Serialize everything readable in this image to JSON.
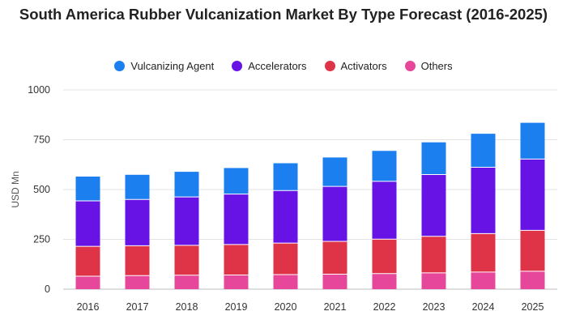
{
  "chart_data": {
    "type": "bar",
    "stacked": true,
    "title": "South America Rubber Vulcanization Market By Type Forecast (2016-2025)",
    "ylabel": "USD Mn",
    "xlabel": "",
    "ylim": [
      0,
      1000
    ],
    "yticks": [
      "0",
      "250",
      "500",
      "750",
      "1000"
    ],
    "ytick_values": [
      0,
      250,
      500,
      750,
      1000
    ],
    "categories": [
      "2016",
      "2017",
      "2018",
      "2019",
      "2020",
      "2021",
      "2022",
      "2023",
      "2024",
      "2025"
    ],
    "legend_position": "top-center",
    "grid": true,
    "series": [
      {
        "name": "Others",
        "color": "#e6479a",
        "values": [
          65,
          68,
          70,
          71,
          73,
          75,
          78,
          82,
          86,
          90
        ]
      },
      {
        "name": "Activators",
        "color": "#df3347",
        "values": [
          150,
          150,
          150,
          153,
          158,
          165,
          173,
          183,
          193,
          205
        ]
      },
      {
        "name": "Accelerators",
        "color": "#6713e6",
        "values": [
          228,
          232,
          243,
          253,
          264,
          276,
          290,
          310,
          333,
          358
        ]
      },
      {
        "name": "Vulcanizing Agent",
        "color": "#1c7ff0",
        "values": [
          122,
          124,
          126,
          131,
          137,
          145,
          153,
          162,
          168,
          182
        ]
      }
    ],
    "legend_order": [
      "Vulcanizing Agent",
      "Accelerators",
      "Activators",
      "Others"
    ]
  }
}
